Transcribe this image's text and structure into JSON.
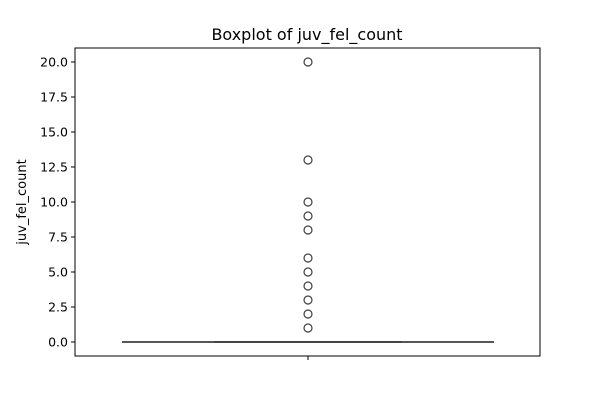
{
  "chart_data": {
    "type": "boxplot",
    "title": "Boxplot of juv_fel_count",
    "xlabel": "",
    "ylabel": "juv_fel_count",
    "ylim": [
      -1.0,
      21.0
    ],
    "yticks": [
      0.0,
      2.5,
      5.0,
      7.5,
      10.0,
      12.5,
      15.0,
      17.5,
      20.0
    ],
    "ytick_labels": [
      "0.0",
      "2.5",
      "5.0",
      "7.5",
      "10.0",
      "12.5",
      "15.0",
      "17.5",
      "20.0"
    ],
    "grid": false,
    "box": {
      "q1": 0,
      "median": 0,
      "q3": 0,
      "whisker_low": 0,
      "whisker_high": 0
    },
    "outliers": [
      1,
      2,
      3,
      4,
      5,
      6,
      8,
      9,
      10,
      13,
      20
    ],
    "colors": {
      "box_line": "#3f3f3f",
      "box_fill": "#1f77b4",
      "outlier_edge": "#3f3f3f"
    }
  }
}
